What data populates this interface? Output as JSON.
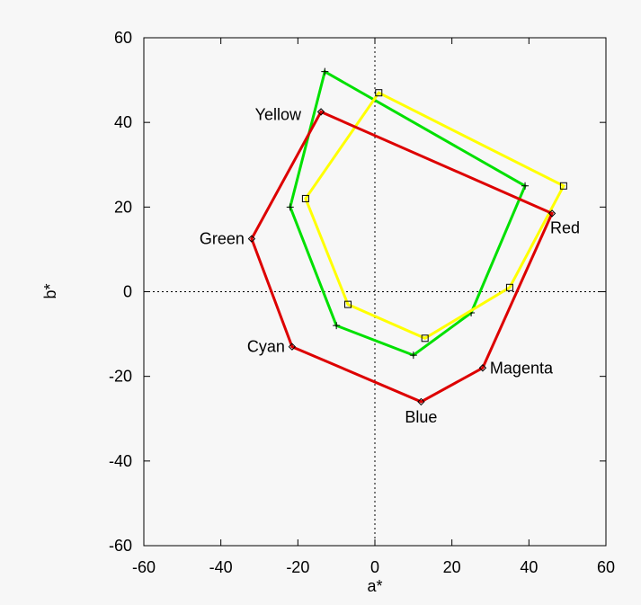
{
  "chart_data": {
    "type": "line",
    "title": "",
    "xlabel": "a*",
    "ylabel": "b*",
    "xlim": [
      -60,
      60
    ],
    "ylim": [
      -60,
      60
    ],
    "xticks": [
      -60,
      -40,
      -20,
      0,
      20,
      40,
      60
    ],
    "yticks": [
      -60,
      -40,
      -20,
      0,
      20,
      40,
      60
    ],
    "zero_lines": true,
    "grid": false,
    "series": [
      {
        "color": "#00e000",
        "marker": "plus",
        "closed": true,
        "points": [
          {
            "x": -13,
            "y": 52
          },
          {
            "x": 39,
            "y": 25
          },
          {
            "x": 25,
            "y": -5
          },
          {
            "x": 10,
            "y": -15
          },
          {
            "x": -10,
            "y": -8
          },
          {
            "x": -22,
            "y": 20
          }
        ]
      },
      {
        "color": "#ffff00",
        "marker": "square",
        "closed": true,
        "points": [
          {
            "x": 1,
            "y": 47
          },
          {
            "x": 49,
            "y": 25
          },
          {
            "x": 35,
            "y": 1
          },
          {
            "x": 13,
            "y": -11
          },
          {
            "x": -7,
            "y": -3
          },
          {
            "x": -18,
            "y": 22
          }
        ]
      },
      {
        "color": "#dd0000",
        "marker": "diamond",
        "closed": true,
        "points": [
          {
            "x": -14,
            "y": 42.5,
            "label": "Yellow"
          },
          {
            "x": 46,
            "y": 18.5,
            "label": "Red"
          },
          {
            "x": 28,
            "y": -18,
            "label": "Magenta"
          },
          {
            "x": 12,
            "y": -26,
            "label": "Blue"
          },
          {
            "x": -21.5,
            "y": -13,
            "label": "Cyan"
          },
          {
            "x": -32,
            "y": 12.5,
            "label": "Green"
          }
        ]
      }
    ]
  }
}
